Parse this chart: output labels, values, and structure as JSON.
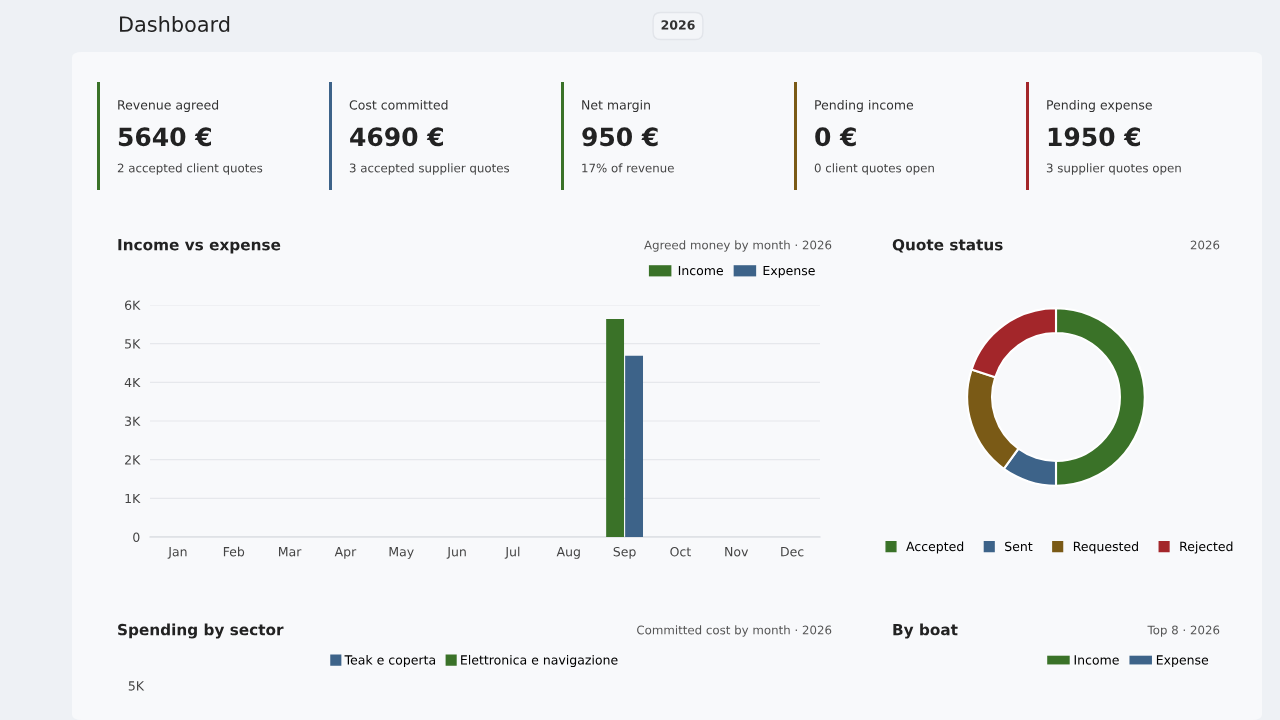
{
  "chart_data": [
    {
      "type": "other",
      "title": "Dashboard",
      "subtitle": "2026",
      "annotations": [
        "Revenue agreed",
        "5640 €",
        "2 accepted client quotes",
        "Cost committed",
        "4690 €",
        "3 accepted supplier quotes",
        "Net margin",
        "950 €",
        "17% of revenue",
        "Pending income",
        "0 €",
        "0 client quotes open",
        "Pending expense",
        "1950 €",
        "3 supplier quotes open"
      ],
      "colors": [
        "#3a7228",
        "#3d6389",
        "#3a7228",
        "#7a5a16",
        "#a3262a"
      ]
    },
    {
      "type": "bar",
      "title": "Income vs expense",
      "subtitle": "Agreed money by month · 2026",
      "categories": [
        "Jan",
        "Feb",
        "Mar",
        "Apr",
        "May",
        "Jun",
        "Jul",
        "Aug",
        "Sep",
        "Oct",
        "Nov",
        "Dec"
      ],
      "series": [
        {
          "name": "Income",
          "color": "#3a7228",
          "values": [
            0,
            0,
            0,
            0,
            0,
            0,
            0,
            0,
            5640,
            0,
            0,
            0
          ]
        },
        {
          "name": "Expense",
          "color": "#3d6389",
          "values": [
            0,
            0,
            0,
            0,
            0,
            0,
            0,
            0,
            4690,
            0,
            0,
            0
          ]
        }
      ],
      "ylim": [
        0,
        6000
      ],
      "yticks": [
        0,
        {
          "value": 1000,
          "label": "1K"
        },
        {
          "value": 2000,
          "label": "2K"
        },
        {
          "value": 3000,
          "label": "3K"
        },
        {
          "value": 4000,
          "label": "4K"
        },
        {
          "value": 5000,
          "label": "5K"
        },
        {
          "value": 6000,
          "label": "6K"
        }
      ],
      "grid": "y",
      "legend": "top right"
    },
    {
      "type": "donut",
      "title": "Quote status",
      "subtitle": "2026",
      "categories": [
        "Accepted",
        "Sent",
        "Requested",
        "Rejected"
      ],
      "values": [
        50,
        10,
        20,
        20
      ],
      "colors": [
        "#3a7228",
        "#3d6389",
        "#7a5a16",
        "#a3262a"
      ],
      "legend": "bottom"
    },
    {
      "type": "other",
      "title": "Spending by sector",
      "subtitle": "Committed cost by month · 2026",
      "series": [
        {
          "name": "Teak e coperta",
          "color": "#3d6389"
        },
        {
          "name": "Elettronica e navigazione",
          "color": "#3a7228"
        }
      ],
      "annotations": [
        "5K"
      ],
      "legend": "top"
    },
    {
      "type": "other",
      "title": "By boat",
      "subtitle": "Top 8 · 2026",
      "series": [
        {
          "name": "Income",
          "color": "#3a7228"
        },
        {
          "name": "Expense",
          "color": "#3d6389"
        }
      ],
      "legend": "top right"
    }
  ]
}
